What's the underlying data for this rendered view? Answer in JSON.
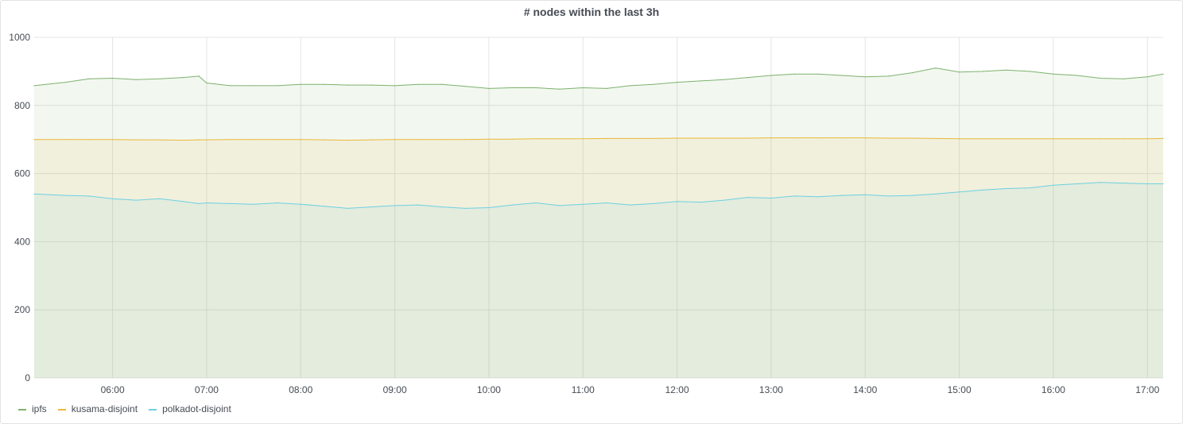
{
  "panel": {
    "title": "# nodes within the last 3h"
  },
  "chart_data": {
    "type": "area",
    "title": "# nodes within the last 3h",
    "xlabel": "",
    "ylabel": "",
    "ylim": [
      0,
      1000
    ],
    "yticks": [
      0,
      200,
      400,
      600,
      800,
      1000
    ],
    "xlim": [
      "05:10",
      "17:10"
    ],
    "xticks": [
      "06:00",
      "07:00",
      "08:00",
      "09:00",
      "10:00",
      "11:00",
      "12:00",
      "13:00",
      "14:00",
      "15:00",
      "16:00",
      "17:00"
    ],
    "grid": true,
    "legend_position": "bottom-left",
    "stacked": false,
    "x": [
      "05:10",
      "05:30",
      "05:45",
      "06:00",
      "06:15",
      "06:30",
      "06:45",
      "06:55",
      "07:00",
      "07:15",
      "07:30",
      "07:45",
      "08:00",
      "08:15",
      "08:30",
      "08:45",
      "09:00",
      "09:15",
      "09:30",
      "09:45",
      "10:00",
      "10:15",
      "10:30",
      "10:45",
      "11:00",
      "11:15",
      "11:30",
      "11:45",
      "12:00",
      "12:15",
      "12:30",
      "12:45",
      "13:00",
      "13:15",
      "13:30",
      "13:45",
      "14:00",
      "14:15",
      "14:30",
      "14:45",
      "15:00",
      "15:15",
      "15:30",
      "15:45",
      "16:00",
      "16:15",
      "16:30",
      "16:45",
      "17:00",
      "17:10"
    ],
    "series": [
      {
        "name": "ipfs",
        "color": "#7eb26d",
        "values": [
          858,
          868,
          878,
          880,
          876,
          878,
          882,
          886,
          866,
          858,
          858,
          858,
          862,
          862,
          860,
          860,
          858,
          862,
          862,
          856,
          850,
          852,
          852,
          848,
          852,
          850,
          858,
          862,
          868,
          872,
          876,
          882,
          888,
          892,
          892,
          888,
          884,
          886,
          896,
          910,
          898,
          900,
          904,
          900,
          892,
          888,
          880,
          878,
          884,
          892
        ]
      },
      {
        "name": "kusama-disjoint",
        "color": "#eab839",
        "values": [
          700,
          700,
          700,
          700,
          699,
          699,
          698,
          699,
          699,
          700,
          700,
          700,
          700,
          699,
          698,
          699,
          700,
          700,
          700,
          700,
          701,
          701,
          702,
          702,
          702,
          703,
          703,
          703,
          704,
          704,
          704,
          704,
          705,
          705,
          705,
          705,
          705,
          704,
          704,
          703,
          702,
          702,
          702,
          702,
          702,
          702,
          702,
          702,
          702,
          703
        ]
      },
      {
        "name": "polkadot-disjoint",
        "color": "#6ed0e0",
        "values": [
          540,
          536,
          534,
          526,
          522,
          526,
          518,
          512,
          514,
          512,
          510,
          514,
          510,
          504,
          498,
          502,
          506,
          508,
          502,
          498,
          500,
          508,
          514,
          506,
          510,
          514,
          508,
          512,
          518,
          516,
          522,
          530,
          528,
          534,
          532,
          536,
          538,
          534,
          536,
          540,
          546,
          552,
          556,
          558,
          566,
          570,
          574,
          572,
          570,
          570
        ]
      }
    ]
  }
}
